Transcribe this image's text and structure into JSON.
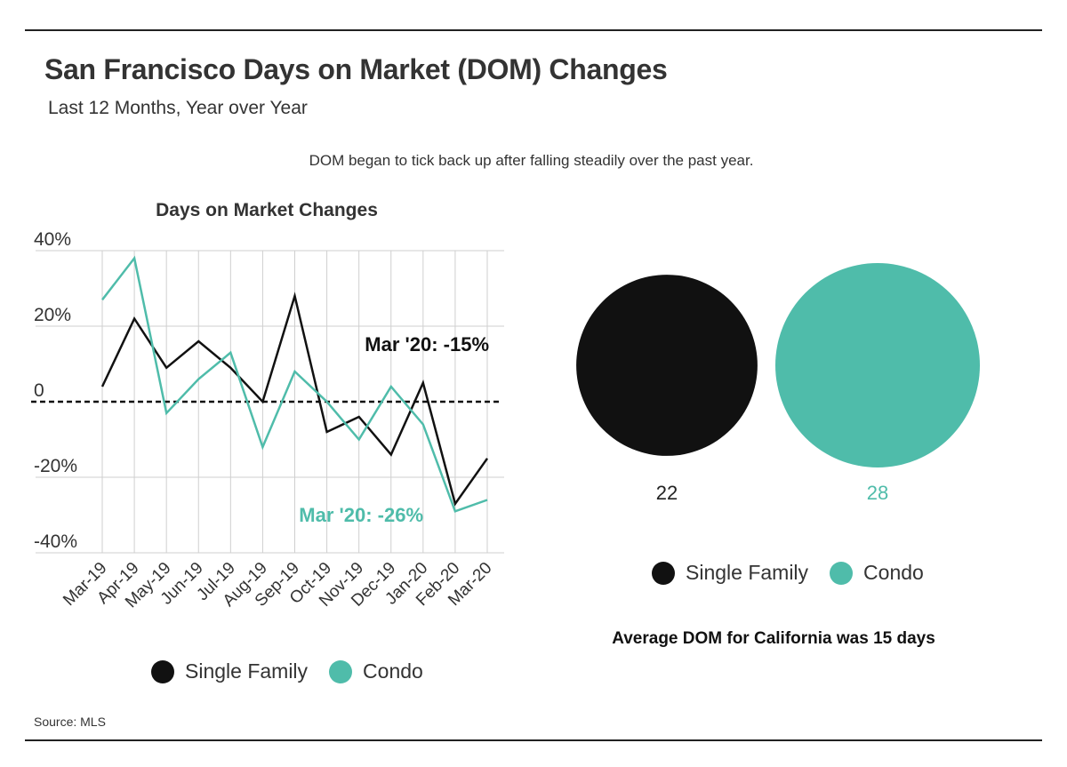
{
  "header": {
    "title": "San Francisco Days on Market (DOM) Changes",
    "subtitle": "Last 12 Months, Year over Year",
    "note": "DOM began to tick back up after falling steadily over the past year."
  },
  "colors": {
    "single_family": "#111111",
    "condo": "#4fbcaa",
    "grid": "#cfcfcf"
  },
  "chart_data": [
    {
      "type": "line",
      "title": "Days on Market Changes",
      "categories": [
        "Mar-19",
        "Apr-19",
        "May-19",
        "Jun-19",
        "Jul-19",
        "Aug-19",
        "Sep-19",
        "Oct-19",
        "Nov-19",
        "Dec-19",
        "Jan-20",
        "Feb-20",
        "Mar-20"
      ],
      "series": [
        {
          "name": "Single Family",
          "values": [
            4,
            22,
            9,
            16,
            9,
            0,
            28,
            -8,
            -4,
            -14,
            5,
            -27,
            -15
          ]
        },
        {
          "name": "Condo",
          "values": [
            27,
            38,
            -3,
            6,
            13,
            -12,
            8,
            0,
            -10,
            4,
            -6,
            -29,
            -26
          ]
        }
      ],
      "y_ticks": [
        {
          "value": 40,
          "label": "40%"
        },
        {
          "value": 20,
          "label": "20%"
        },
        {
          "value": 0,
          "label": "0"
        },
        {
          "value": -20,
          "label": "-20%"
        },
        {
          "value": -40,
          "label": "-40%"
        }
      ],
      "ylim": [
        -40,
        40
      ],
      "grid": true,
      "zero_line": "dashed",
      "annotations": [
        {
          "series": "Single Family",
          "text": "Mar '20: -15%"
        },
        {
          "series": "Condo",
          "text": "Mar '20: -26%"
        }
      ],
      "legend": [
        "Single Family",
        "Condo"
      ],
      "legend_position": "bottom"
    },
    {
      "type": "bubble",
      "categories": [
        "Single Family",
        "Condo"
      ],
      "values": [
        22,
        28
      ],
      "labels": [
        "22",
        "28"
      ],
      "legend": [
        "Single Family",
        "Condo"
      ],
      "legend_position": "bottom",
      "caption": "Average DOM for California was 15 days"
    }
  ],
  "footer": {
    "source": "Source: MLS"
  }
}
